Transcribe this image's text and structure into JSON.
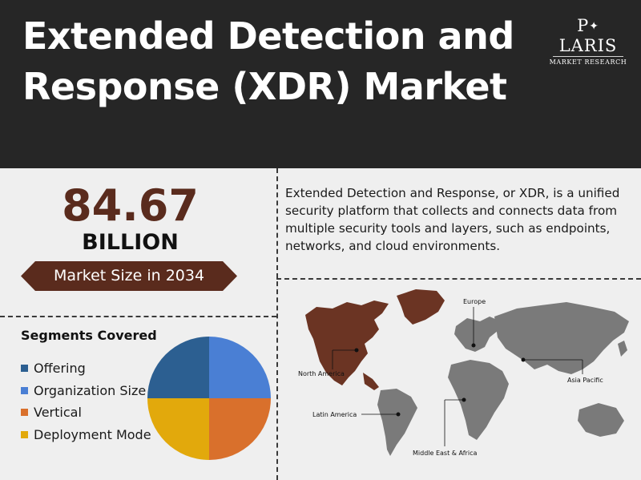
{
  "header": {
    "title_line1": "Extended Detection and",
    "title_line2": "Response (XDR) Market",
    "background": "#262626"
  },
  "logo": {
    "name_prefix": "P",
    "name_suffix": "LARIS",
    "subtitle": "MARKET RESEARCH"
  },
  "market": {
    "value": "84.67",
    "unit": "BILLION",
    "label": "Market Size in 2034",
    "accent": "#5a2b1d"
  },
  "description": "Extended Detection and Response, or XDR, is a unified security platform that collects and connects data from multiple security tools and layers, such as endpoints, networks, and cloud environments.",
  "segments": {
    "title": "Segments Covered",
    "items": [
      {
        "label": "Offering",
        "color": "#2c5f91"
      },
      {
        "label": "Organization Size",
        "color": "#4a7fd4"
      },
      {
        "label": "Vertical",
        "color": "#d9702c"
      },
      {
        "label": "Deployment Mode",
        "color": "#e2a90c"
      }
    ]
  },
  "map": {
    "regions": [
      {
        "label": "North America",
        "icon": "dot-marker"
      },
      {
        "label": "Europe",
        "icon": "dot-marker"
      },
      {
        "label": "Asia Pacific",
        "icon": "dot-marker"
      },
      {
        "label": "Latin America",
        "icon": "dot-marker"
      },
      {
        "label": "Middle East & Africa",
        "icon": "dot-marker"
      }
    ],
    "highlight_color": "#6b3423",
    "base_color": "#7a7a7a"
  }
}
